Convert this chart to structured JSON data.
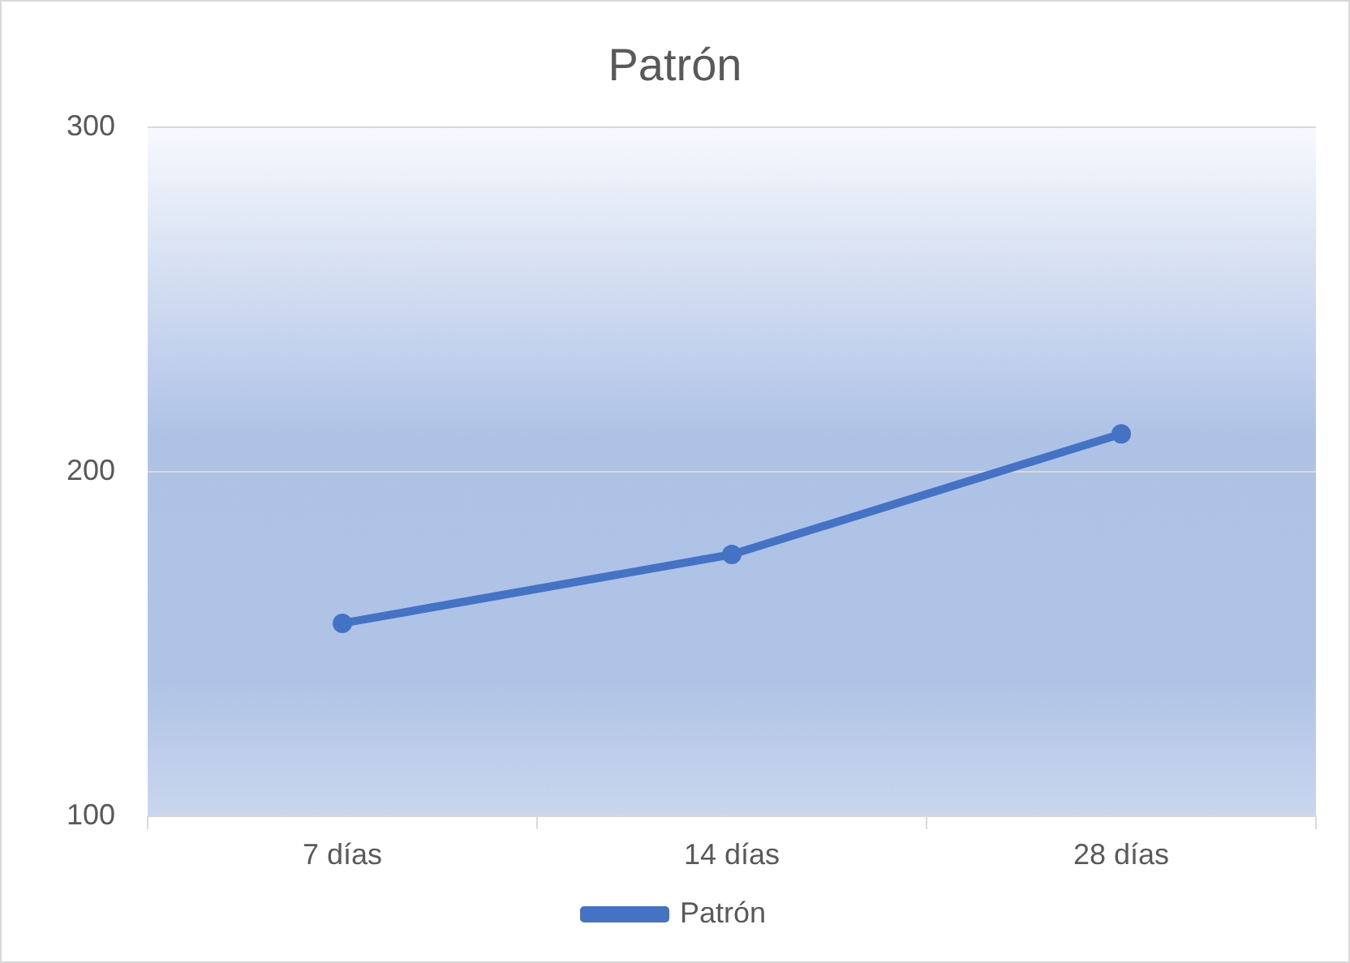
{
  "chart_data": {
    "type": "line",
    "title": "Patrón",
    "categories": [
      "7 días",
      "14 días",
      "28 días"
    ],
    "series": [
      {
        "name": "Patrón",
        "color": "#4472c4",
        "values": [
          156,
          176,
          211
        ]
      }
    ],
    "ylim": [
      100,
      300
    ],
    "yticks": [
      100,
      200,
      300
    ],
    "grid": "y",
    "legend": "bottom",
    "marker": "circle",
    "line_style": "solid"
  }
}
